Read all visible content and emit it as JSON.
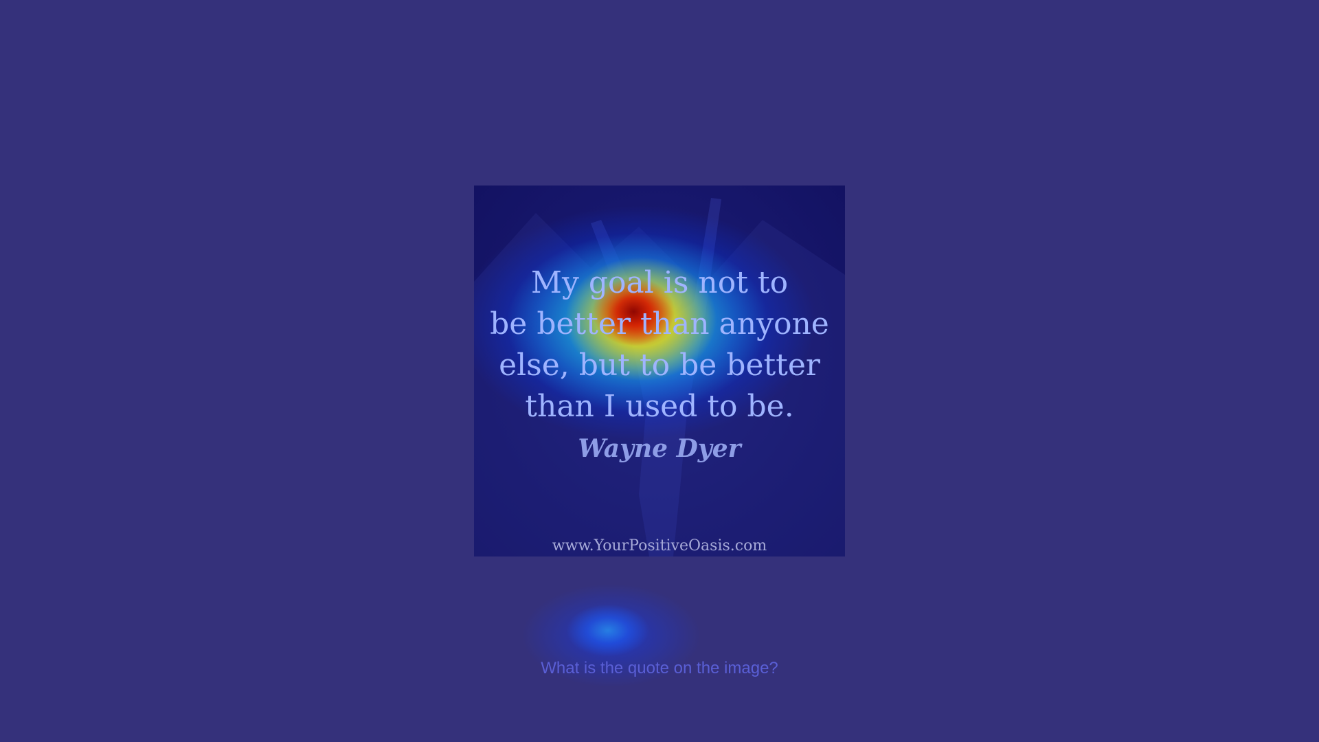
{
  "image": {
    "quote_lines": [
      "My goal is not to",
      "be better than anyone",
      "else, but to be better",
      "than I used to be."
    ],
    "author": "Wayne Dyer",
    "website": "www.YourPositiveOasis.com"
  },
  "question": "What is the quote on the image?",
  "colors": {
    "background": "#35317b",
    "heat_hot": "#8c0000",
    "heat_warm": "#ffdc00",
    "heat_cool": "#0040ff"
  }
}
